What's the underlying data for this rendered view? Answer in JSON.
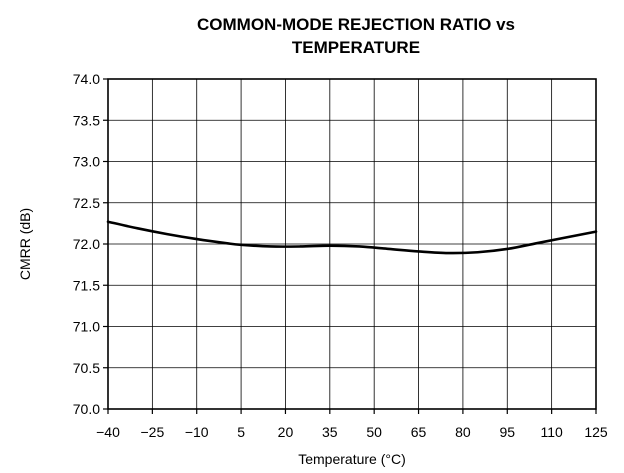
{
  "chart_data": {
    "type": "line",
    "title_lines": [
      "COMMON-MODE REJECTION RATIO vs",
      "TEMPERATURE"
    ],
    "xlabel": "Temperature (°C)",
    "ylabel": "CMRR (dB)",
    "xlim": [
      -40,
      125
    ],
    "ylim": [
      70.0,
      74.0
    ],
    "x_ticks": [
      -40,
      -25,
      -10,
      5,
      20,
      35,
      50,
      65,
      80,
      95,
      110,
      125
    ],
    "x_tick_labels": [
      "−40",
      "−25",
      "−10",
      "5",
      "20",
      "35",
      "50",
      "65",
      "80",
      "95",
      "110",
      "125"
    ],
    "y_ticks": [
      70.0,
      70.5,
      71.0,
      71.5,
      72.0,
      72.5,
      73.0,
      73.5,
      74.0
    ],
    "y_tick_labels": [
      "70.0",
      "70.5",
      "71.0",
      "71.5",
      "72.0",
      "72.5",
      "73.0",
      "73.5",
      "74.0"
    ],
    "grid": true,
    "series": [
      {
        "x": [
          -40,
          -30,
          -20,
          -10,
          0,
          5,
          15,
          25,
          35,
          45,
          55,
          65,
          75,
          85,
          95,
          105,
          115,
          125
        ],
        "y": [
          72.27,
          72.19,
          72.12,
          72.06,
          72.01,
          71.99,
          71.97,
          71.97,
          71.98,
          71.97,
          71.94,
          71.91,
          71.89,
          71.9,
          71.94,
          72.01,
          72.08,
          72.15
        ],
        "color": "#000000"
      }
    ]
  }
}
